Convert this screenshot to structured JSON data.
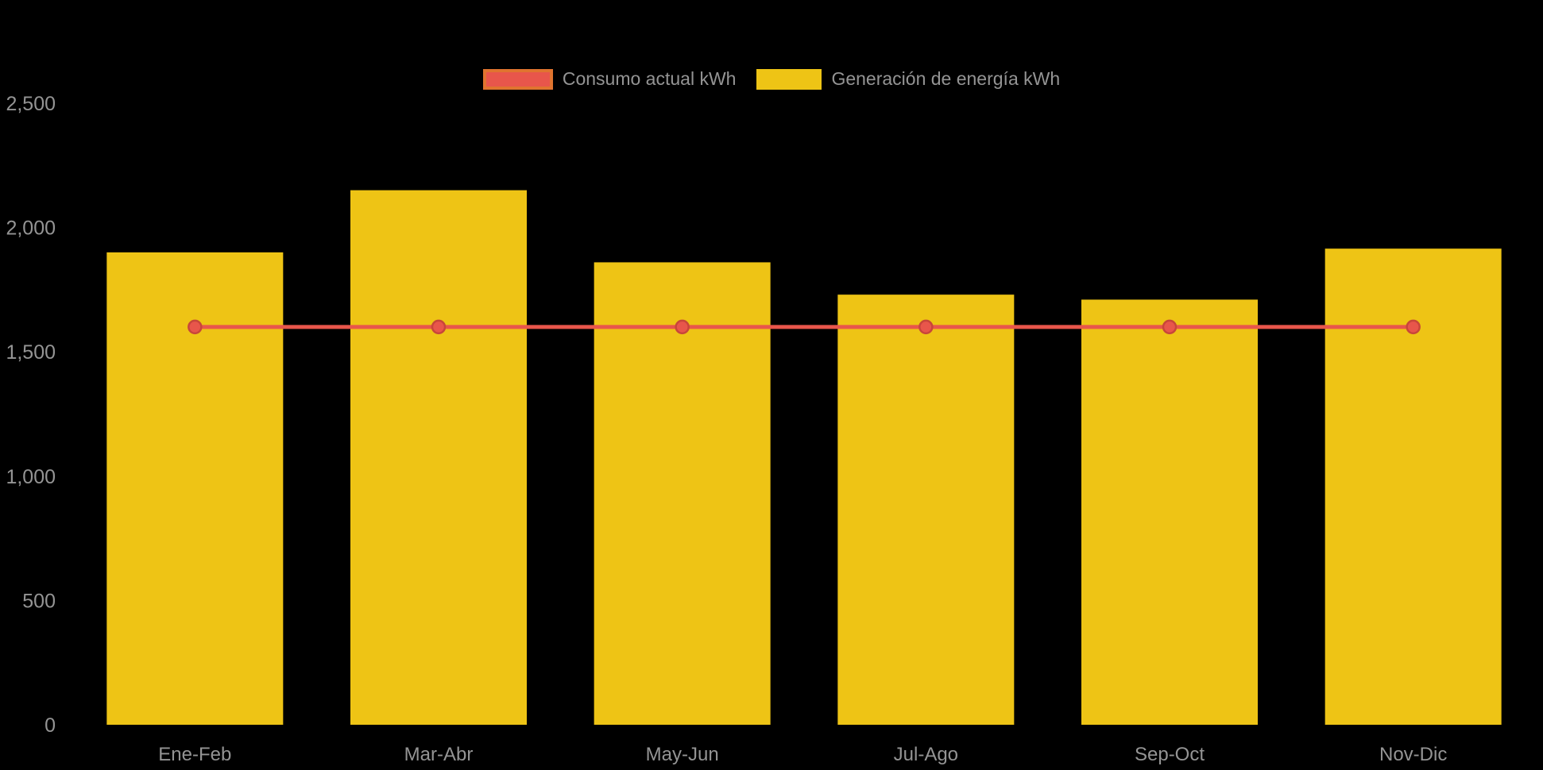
{
  "chart_data": {
    "type": "bar",
    "title": "",
    "categories": [
      "Ene-Feb",
      "Mar-Abr",
      "May-Jun",
      "Jul-Ago",
      "Sep-Oct",
      "Nov-Dic"
    ],
    "series": [
      {
        "name": "Consumo actual kWh",
        "type": "line",
        "values": [
          1600,
          1600,
          1600,
          1600,
          1600,
          1600
        ],
        "color": "#e8564b",
        "point_border": "#c8463a",
        "swatch_border": "#e0742f"
      },
      {
        "name": "Generación de energía kWh",
        "type": "bar",
        "values": [
          1900,
          2150,
          1860,
          1730,
          1710,
          1915
        ],
        "color": "#eec415"
      }
    ],
    "xlabel": "",
    "ylabel": "",
    "ylim": [
      0,
      2500
    ],
    "yticks": [
      0,
      500,
      1000,
      1500,
      2000,
      2500
    ],
    "ytick_labels": [
      "0",
      "500",
      "1,000",
      "1,500",
      "2,000",
      "2,500"
    ],
    "grid": false,
    "legend_position": "top",
    "background": "#000000",
    "text_color": "#949494"
  }
}
